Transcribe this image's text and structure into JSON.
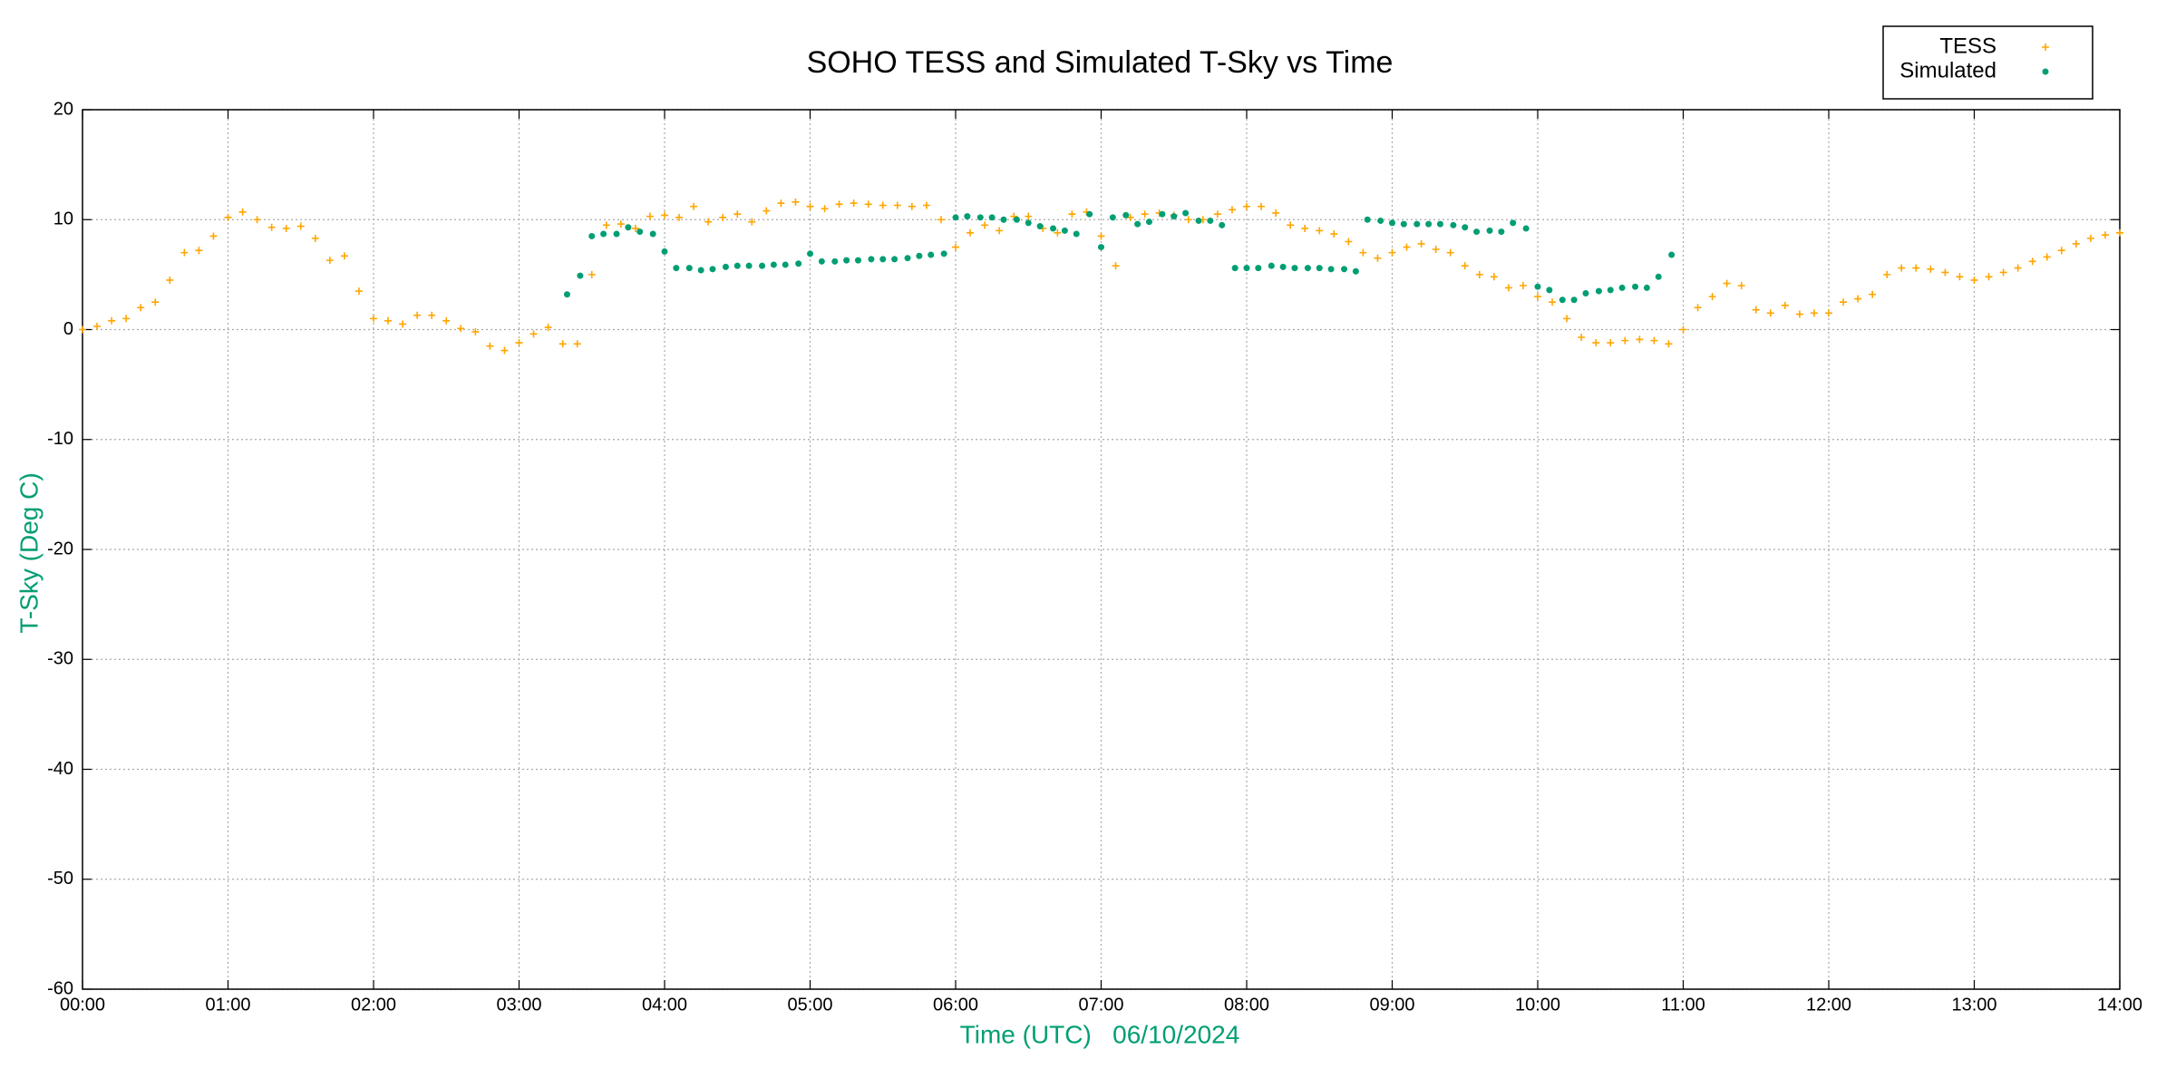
{
  "chart_data": {
    "type": "scatter",
    "title": "SOHO TESS and Simulated T-Sky vs Time",
    "x_label": "Time (UTC)   06/10/2024",
    "y_label": "T-Sky (Deg C)",
    "xlim": [
      0,
      14
    ],
    "ylim": [
      -60,
      20
    ],
    "xticks": [
      {
        "value": 0,
        "label": "00:00"
      },
      {
        "value": 1,
        "label": "01:00"
      },
      {
        "value": 2,
        "label": "02:00"
      },
      {
        "value": 3,
        "label": "03:00"
      },
      {
        "value": 4,
        "label": "04:00"
      },
      {
        "value": 5,
        "label": "05:00"
      },
      {
        "value": 6,
        "label": "06:00"
      },
      {
        "value": 7,
        "label": "07:00"
      },
      {
        "value": 8,
        "label": "08:00"
      },
      {
        "value": 9,
        "label": "09:00"
      },
      {
        "value": 10,
        "label": "10:00"
      },
      {
        "value": 11,
        "label": "11:00"
      },
      {
        "value": 12,
        "label": "12:00"
      },
      {
        "value": 13,
        "label": "13:00"
      },
      {
        "value": 14,
        "label": "14:00"
      }
    ],
    "yticks": [
      -60,
      -50,
      -40,
      -30,
      -20,
      -10,
      0,
      10,
      20
    ],
    "grid": true,
    "legend": "top-right",
    "series": [
      {
        "name": "TESS",
        "color": "#ffa500",
        "marker": "plus",
        "x": [
          0,
          0.1,
          0.2,
          0.3,
          0.4,
          0.5,
          0.6,
          0.7,
          0.8,
          0.9,
          1,
          1.1,
          1.2,
          1.3,
          1.4,
          1.5,
          1.6,
          1.7,
          1.8,
          1.9,
          2,
          2.1,
          2.2,
          2.3,
          2.4,
          2.5,
          2.6,
          2.7,
          2.8,
          2.9,
          3,
          3.1,
          3.2,
          3.3,
          3.4,
          3.5,
          3.6,
          3.7,
          3.8,
          3.9,
          4,
          4.1,
          4.2,
          4.3,
          4.4,
          4.5,
          4.6,
          4.7,
          4.8,
          4.9,
          5,
          5.1,
          5.2,
          5.3,
          5.4,
          5.5,
          5.6,
          5.7,
          5.8,
          5.9,
          6,
          6.1,
          6.2,
          6.3,
          6.4,
          6.5,
          6.6,
          6.7,
          6.8,
          6.9,
          7,
          7.1,
          7.2,
          7.3,
          7.4,
          7.5,
          7.6,
          7.7,
          7.8,
          7.9,
          8,
          8.1,
          8.2,
          8.3,
          8.4,
          8.5,
          8.6,
          8.7,
          8.8,
          8.9,
          9,
          9.1,
          9.2,
          9.3,
          9.4,
          9.5,
          9.6,
          9.7,
          9.8,
          9.9,
          10,
          10.1,
          10.2,
          10.3,
          10.4,
          10.5,
          10.6,
          10.7,
          10.8,
          10.9,
          11,
          11.1,
          11.2,
          11.3,
          11.4,
          11.5,
          11.6,
          11.7,
          11.8,
          11.9,
          12,
          12.1,
          12.2,
          12.3,
          12.4,
          12.5,
          12.6,
          12.7,
          12.8,
          12.9,
          13,
          13.1,
          13.2,
          13.3,
          13.4,
          13.5,
          13.6,
          13.7,
          13.8,
          13.9,
          14
        ],
        "values": [
          0,
          0.3,
          0.8,
          1.0,
          2.0,
          2.5,
          4.5,
          7,
          7.2,
          8.5,
          10.2,
          10.7,
          10,
          9.3,
          9.2,
          9.4,
          8.3,
          6.3,
          6.7,
          3.5,
          1.0,
          0.8,
          0.5,
          1.3,
          1.3,
          0.8,
          0.1,
          -0.2,
          -1.5,
          -1.9,
          -1.2,
          -0.4,
          0.2,
          -1.3,
          -1.3,
          5,
          9.5,
          9.6,
          9.2,
          10.3,
          10.4,
          10.2,
          11.2,
          9.8,
          10.2,
          10.5,
          9.8,
          10.8,
          11.5,
          11.6,
          11.2,
          11,
          11.4,
          11.5,
          11.4,
          11.3,
          11.3,
          11.2,
          11.3,
          10,
          7.5,
          8.8,
          9.5,
          9,
          10.3,
          10.3,
          9.2,
          8.8,
          10.5,
          10.7,
          8.5,
          5.8,
          10.2,
          10.5,
          10.6,
          10.4,
          10,
          10,
          10.5,
          10.9,
          11.2,
          11.2,
          10.6,
          9.5,
          9.2,
          9,
          8.7,
          8,
          7,
          6.5,
          7,
          7.5,
          7.8,
          7.3,
          7,
          5.8,
          5,
          4.8,
          3.8,
          4,
          3,
          2.5,
          1,
          -0.7,
          -1.2,
          -1.2,
          -1.0,
          -0.9,
          -1,
          -1.3,
          0,
          2,
          3,
          4.2,
          4,
          1.8,
          1.5,
          2.2,
          1.4,
          1.5,
          1.5,
          2.5,
          2.8,
          3.2,
          5,
          5.6,
          5.6,
          5.5,
          5.2,
          4.8,
          4.5,
          4.8,
          5.2,
          5.6,
          6.2,
          6.6,
          7.2,
          7.8,
          8.3,
          8.6,
          8.8
        ]
      },
      {
        "name": "Simulated",
        "color": "#009e73",
        "marker": "dot",
        "x": [
          3.33,
          3.42,
          3.5,
          3.58,
          3.67,
          3.75,
          3.83,
          3.92,
          4,
          4.08,
          4.17,
          4.25,
          4.33,
          4.42,
          4.5,
          4.58,
          4.67,
          4.75,
          4.83,
          4.92,
          5,
          5.08,
          5.17,
          5.25,
          5.33,
          5.42,
          5.5,
          5.58,
          5.67,
          5.75,
          5.83,
          5.92,
          6,
          6.08,
          6.17,
          6.25,
          6.33,
          6.42,
          6.5,
          6.58,
          6.67,
          6.75,
          6.83,
          6.92,
          7,
          7.08,
          7.17,
          7.25,
          7.33,
          7.42,
          7.5,
          7.58,
          7.67,
          7.75,
          7.83,
          7.92,
          8,
          8.08,
          8.17,
          8.25,
          8.33,
          8.42,
          8.5,
          8.58,
          8.67,
          8.75,
          8.83,
          8.92,
          9,
          9.08,
          9.17,
          9.25,
          9.33,
          9.42,
          9.5,
          9.58,
          9.67,
          9.75,
          9.83,
          9.92,
          10,
          10.08,
          10.17,
          10.25,
          10.33,
          10.42,
          10.5,
          10.58,
          10.67,
          10.75,
          10.83,
          10.92
        ],
        "values": [
          3.2,
          4.9,
          8.5,
          8.7,
          8.7,
          9.3,
          8.9,
          8.7,
          7.1,
          5.6,
          5.6,
          5.4,
          5.5,
          5.7,
          5.8,
          5.8,
          5.8,
          5.9,
          5.9,
          6.0,
          6.9,
          6.2,
          6.2,
          6.3,
          6.3,
          6.4,
          6.4,
          6.4,
          6.5,
          6.7,
          6.8,
          6.9,
          10.2,
          10.3,
          10.2,
          10.2,
          10,
          10,
          9.7,
          9.4,
          9.2,
          9,
          8.7,
          10.5,
          7.5,
          10.2,
          10.4,
          9.6,
          9.8,
          10.5,
          10.3,
          10.6,
          9.9,
          9.9,
          9.5,
          5.6,
          5.6,
          5.6,
          5.8,
          5.7,
          5.6,
          5.6,
          5.6,
          5.5,
          5.5,
          5.3,
          10,
          9.9,
          9.7,
          9.6,
          9.6,
          9.6,
          9.6,
          9.5,
          9.3,
          8.9,
          9,
          8.9,
          9.7,
          9.2,
          3.9,
          3.6,
          2.7,
          2.7,
          3.3,
          3.5,
          3.6,
          3.8,
          3.9,
          3.8,
          4.8,
          6.8
        ]
      }
    ]
  }
}
